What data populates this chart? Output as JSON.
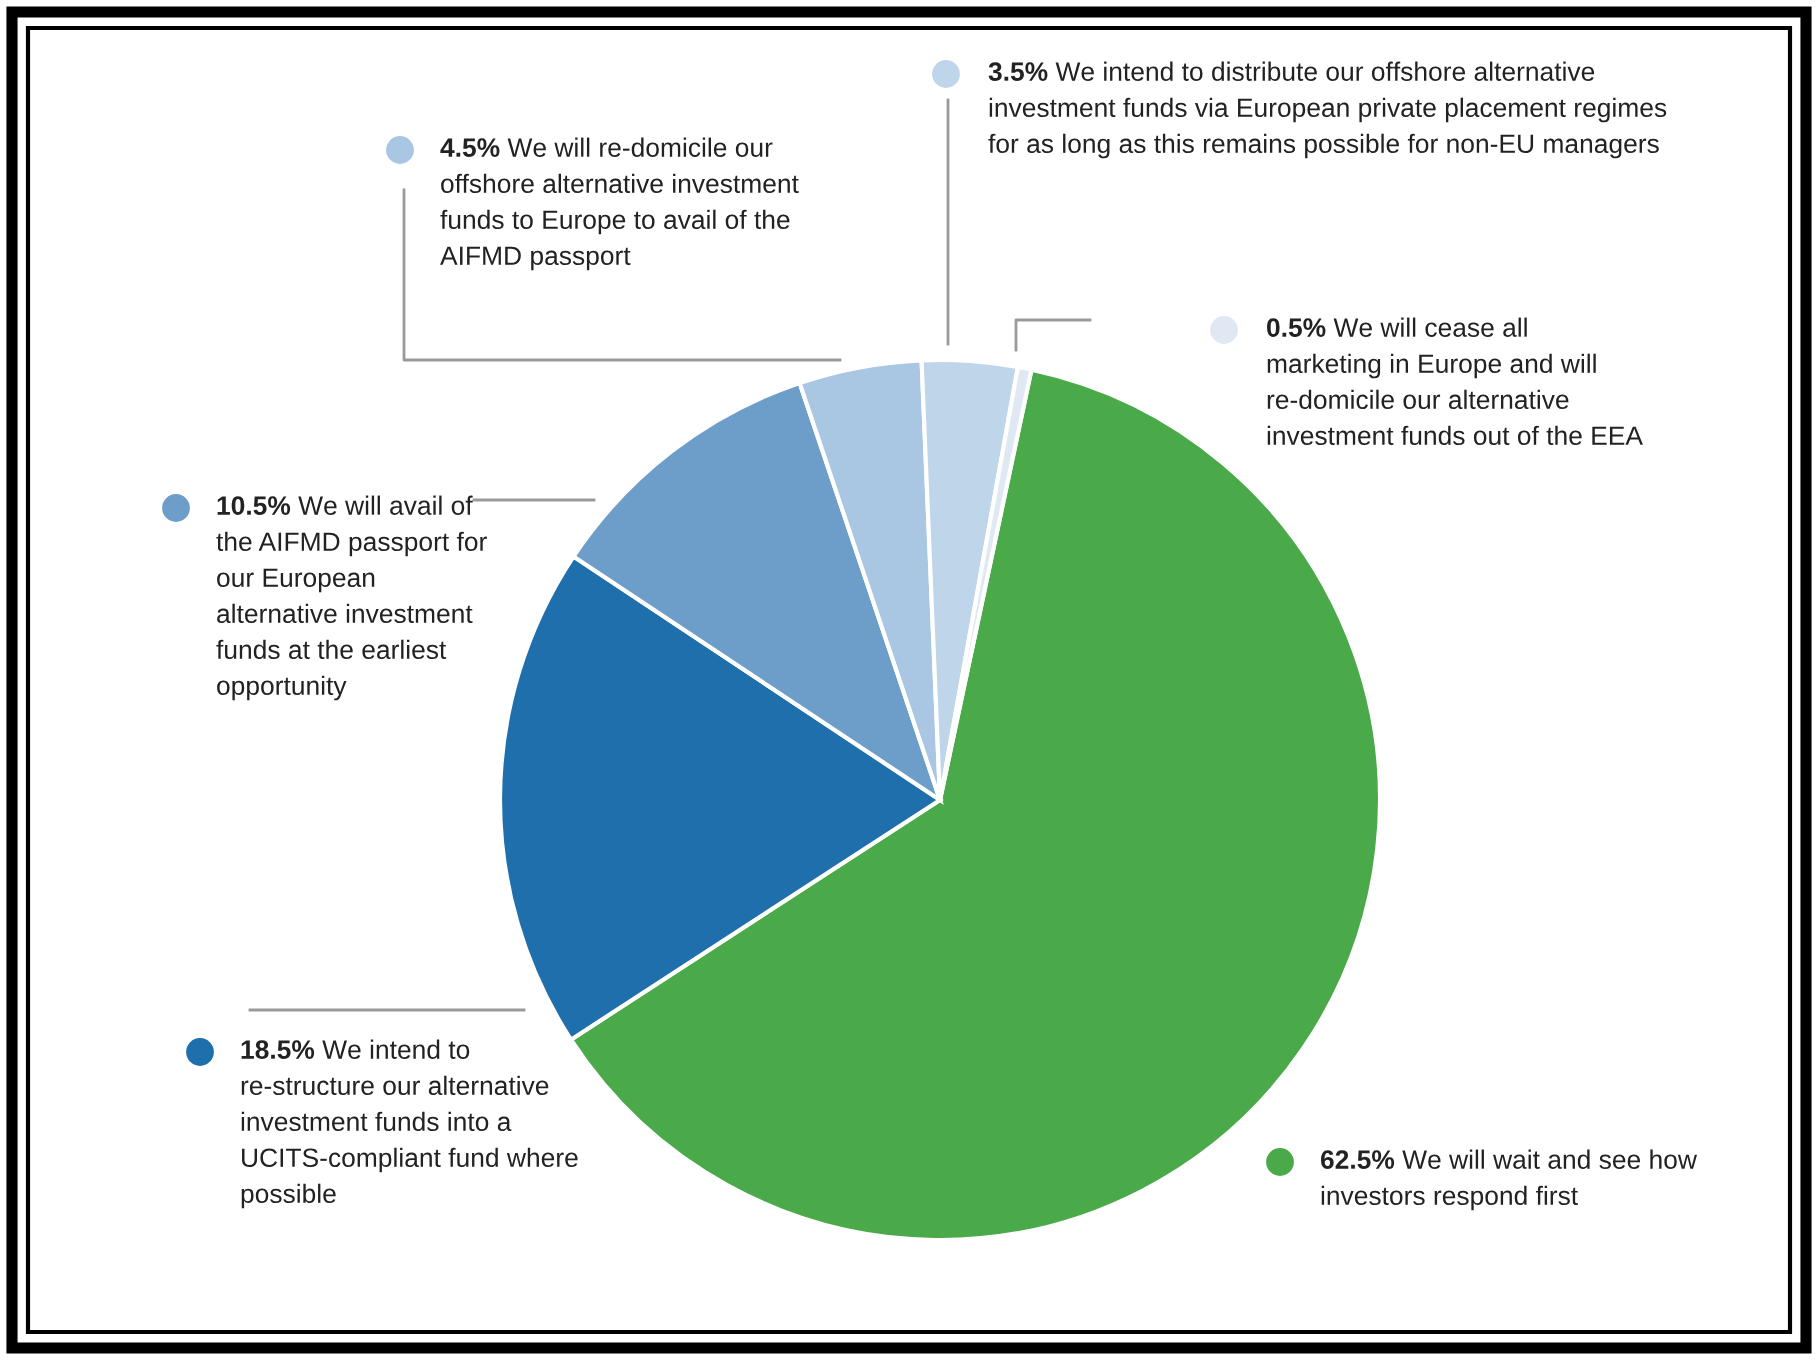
{
  "chart_data": {
    "type": "pie",
    "categories": [
      "We will wait and see how investors respond first",
      "We intend to re-structure our alternative investment funds into a UCITS-compliant fund where possible",
      "We will avail of the AIFMD passport for our European alternative investment funds at the earliest opportunity",
      "We will re-domicile our offshore alternative investment funds to Europe to avail of the AIFMD passport",
      "We intend to distribute our offshore alternative investment funds via European private placement regimes for as long as this remains possible for non-EU managers",
      "We will cease all marketing in Europe and will re-domicile our alternative investment funds out of the EEA"
    ],
    "values": [
      62.5,
      18.5,
      10.5,
      4.5,
      3.5,
      0.5
    ],
    "value_labels": [
      "62.5%",
      "18.5%",
      "10.5%",
      "4.5%",
      "3.5%",
      "0.5%"
    ],
    "colors": [
      "#4aaa4a",
      "#1f6fad",
      "#6d9ec9",
      "#a9c6e3",
      "#bfd5ea",
      "#dfe8f3"
    ],
    "legend": "top"
  }
}
